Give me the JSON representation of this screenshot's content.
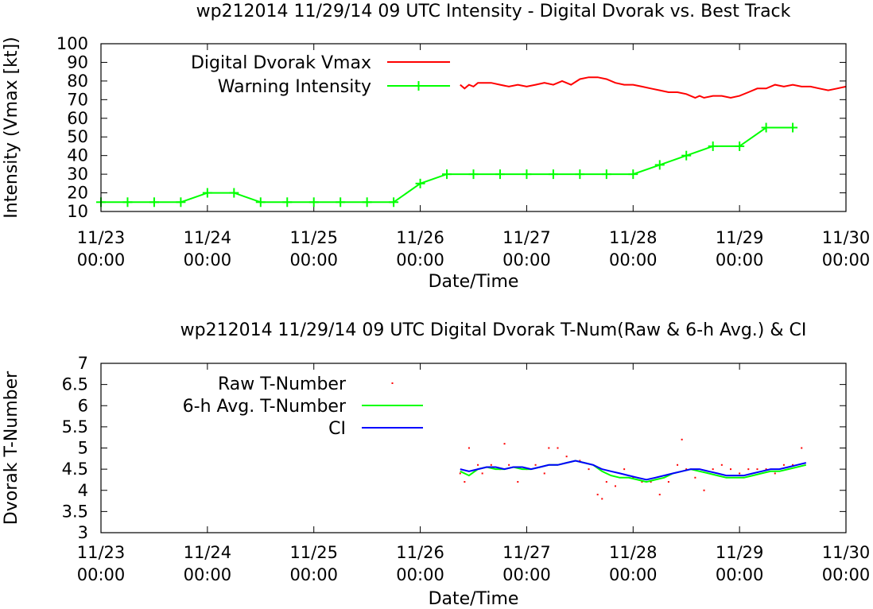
{
  "chart_data": [
    {
      "type": "line",
      "title": "wp212014 11/29/14  09 UTC Intensity - Digital Dvorak vs. Best Track",
      "xlabel": "Date/Time",
      "ylabel": "Intensity (Vmax [kt])",
      "ylim": [
        10,
        100
      ],
      "yticks": [
        10,
        20,
        30,
        40,
        50,
        60,
        70,
        80,
        90,
        100
      ],
      "xlim": [
        "2014-11-23 00:00",
        "2014-11-30 00:00"
      ],
      "xticks": [
        {
          "date": "2014-11-23 00:00",
          "line1": "11/23",
          "line2": "00:00"
        },
        {
          "date": "2014-11-24 00:00",
          "line1": "11/24",
          "line2": "00:00"
        },
        {
          "date": "2014-11-25 00:00",
          "line1": "11/25",
          "line2": "00:00"
        },
        {
          "date": "2014-11-26 00:00",
          "line1": "11/26",
          "line2": "00:00"
        },
        {
          "date": "2014-11-27 00:00",
          "line1": "11/27",
          "line2": "00:00"
        },
        {
          "date": "2014-11-28 00:00",
          "line1": "11/28",
          "line2": "00:00"
        },
        {
          "date": "2014-11-29 00:00",
          "line1": "11/29",
          "line2": "00:00"
        },
        {
          "date": "2014-11-30 00:00",
          "line1": "11/30",
          "line2": "00:00"
        }
      ],
      "legend_placement": "top-left",
      "series": [
        {
          "name": "Digital Dvorak Vmax",
          "color": "#ff0000",
          "style": "line",
          "points": [
            [
              "2014-11-26 09:00",
              78
            ],
            [
              "2014-11-26 10:00",
              76
            ],
            [
              "2014-11-26 11:00",
              78
            ],
            [
              "2014-11-26 12:00",
              77
            ],
            [
              "2014-11-26 13:00",
              79
            ],
            [
              "2014-11-26 14:00",
              79
            ],
            [
              "2014-11-26 16:00",
              79
            ],
            [
              "2014-11-26 18:00",
              78
            ],
            [
              "2014-11-26 20:00",
              77
            ],
            [
              "2014-11-26 22:00",
              78
            ],
            [
              "2014-11-27 00:00",
              77
            ],
            [
              "2014-11-27 02:00",
              78
            ],
            [
              "2014-11-27 04:00",
              79
            ],
            [
              "2014-11-27 06:00",
              78
            ],
            [
              "2014-11-27 08:00",
              80
            ],
            [
              "2014-11-27 10:00",
              78
            ],
            [
              "2014-11-27 12:00",
              81
            ],
            [
              "2014-11-27 14:00",
              82
            ],
            [
              "2014-11-27 16:00",
              82
            ],
            [
              "2014-11-27 18:00",
              81
            ],
            [
              "2014-11-27 20:00",
              79
            ],
            [
              "2014-11-27 22:00",
              78
            ],
            [
              "2014-11-28 00:00",
              78
            ],
            [
              "2014-11-28 02:00",
              77
            ],
            [
              "2014-11-28 04:00",
              76
            ],
            [
              "2014-11-28 06:00",
              75
            ],
            [
              "2014-11-28 08:00",
              74
            ],
            [
              "2014-11-28 10:00",
              74
            ],
            [
              "2014-11-28 12:00",
              73
            ],
            [
              "2014-11-28 14:00",
              71
            ],
            [
              "2014-11-28 15:00",
              72
            ],
            [
              "2014-11-28 16:00",
              71
            ],
            [
              "2014-11-28 18:00",
              72
            ],
            [
              "2014-11-28 20:00",
              72
            ],
            [
              "2014-11-28 22:00",
              71
            ],
            [
              "2014-11-29 00:00",
              72
            ],
            [
              "2014-11-29 02:00",
              74
            ],
            [
              "2014-11-29 04:00",
              76
            ],
            [
              "2014-11-29 06:00",
              76
            ],
            [
              "2014-11-29 08:00",
              78
            ],
            [
              "2014-11-29 10:00",
              77
            ],
            [
              "2014-11-29 12:00",
              78
            ],
            [
              "2014-11-29 14:00",
              77
            ],
            [
              "2014-11-29 16:00",
              77
            ],
            [
              "2014-11-29 18:00",
              76
            ],
            [
              "2014-11-29 20:00",
              75
            ],
            [
              "2014-11-29 22:00",
              76
            ],
            [
              "2014-11-30 00:00",
              77
            ]
          ]
        },
        {
          "name": "Warning Intensity",
          "color": "#00ff00",
          "style": "linespoints",
          "points": [
            [
              "2014-11-23 00:00",
              15
            ],
            [
              "2014-11-23 06:00",
              15
            ],
            [
              "2014-11-23 12:00",
              15
            ],
            [
              "2014-11-23 18:00",
              15
            ],
            [
              "2014-11-24 00:00",
              20
            ],
            [
              "2014-11-24 06:00",
              20
            ],
            [
              "2014-11-24 12:00",
              15
            ],
            [
              "2014-11-24 18:00",
              15
            ],
            [
              "2014-11-25 00:00",
              15
            ],
            [
              "2014-11-25 06:00",
              15
            ],
            [
              "2014-11-25 12:00",
              15
            ],
            [
              "2014-11-25 18:00",
              15
            ],
            [
              "2014-11-26 00:00",
              25
            ],
            [
              "2014-11-26 06:00",
              30
            ],
            [
              "2014-11-26 12:00",
              30
            ],
            [
              "2014-11-26 18:00",
              30
            ],
            [
              "2014-11-27 00:00",
              30
            ],
            [
              "2014-11-27 06:00",
              30
            ],
            [
              "2014-11-27 12:00",
              30
            ],
            [
              "2014-11-27 18:00",
              30
            ],
            [
              "2014-11-28 00:00",
              30
            ],
            [
              "2014-11-28 06:00",
              35
            ],
            [
              "2014-11-28 12:00",
              40
            ],
            [
              "2014-11-28 18:00",
              45
            ],
            [
              "2014-11-29 00:00",
              45
            ],
            [
              "2014-11-29 06:00",
              55
            ],
            [
              "2014-11-29 12:00",
              55
            ]
          ]
        }
      ]
    },
    {
      "type": "line",
      "title": "wp212014 11/29/14  09 UTC Digital Dvorak T-Num(Raw & 6-h Avg.) & CI",
      "xlabel": "Date/Time",
      "ylabel": "Dvorak T-Number",
      "ylim": [
        3,
        7
      ],
      "yticks": [
        3,
        3.5,
        4,
        4.5,
        5,
        5.5,
        6,
        6.5,
        7
      ],
      "ytick_labels": [
        "3",
        "3.5",
        "4",
        "4.5",
        "5",
        "5.5",
        "6",
        "6.5",
        "7"
      ],
      "xlim": [
        "2014-11-23 00:00",
        "2014-11-30 00:00"
      ],
      "xticks": [
        {
          "date": "2014-11-23 00:00",
          "line1": "11/23",
          "line2": "00:00"
        },
        {
          "date": "2014-11-24 00:00",
          "line1": "11/24",
          "line2": "00:00"
        },
        {
          "date": "2014-11-25 00:00",
          "line1": "11/25",
          "line2": "00:00"
        },
        {
          "date": "2014-11-26 00:00",
          "line1": "11/26",
          "line2": "00:00"
        },
        {
          "date": "2014-11-27 00:00",
          "line1": "11/27",
          "line2": "00:00"
        },
        {
          "date": "2014-11-28 00:00",
          "line1": "11/28",
          "line2": "00:00"
        },
        {
          "date": "2014-11-29 00:00",
          "line1": "11/29",
          "line2": "00:00"
        },
        {
          "date": "2014-11-30 00:00",
          "line1": "11/30",
          "line2": "00:00"
        }
      ],
      "legend_placement": "top-left",
      "series": [
        {
          "name": "Raw T-Number",
          "color": "#ff0000",
          "style": "dots",
          "points": [
            [
              "2014-11-26 09:00",
              4.4
            ],
            [
              "2014-11-26 10:00",
              4.2
            ],
            [
              "2014-11-26 11:00",
              5.0
            ],
            [
              "2014-11-26 13:00",
              4.6
            ],
            [
              "2014-11-26 14:00",
              4.4
            ],
            [
              "2014-11-26 16:00",
              4.6
            ],
            [
              "2014-11-26 18:00",
              4.5
            ],
            [
              "2014-11-26 19:00",
              5.1
            ],
            [
              "2014-11-26 20:00",
              4.6
            ],
            [
              "2014-11-26 22:00",
              4.2
            ],
            [
              "2014-11-27 00:00",
              4.5
            ],
            [
              "2014-11-27 02:00",
              4.6
            ],
            [
              "2014-11-27 04:00",
              4.4
            ],
            [
              "2014-11-27 05:00",
              5.0
            ],
            [
              "2014-11-27 07:00",
              5.0
            ],
            [
              "2014-11-27 09:00",
              4.8
            ],
            [
              "2014-11-27 12:00",
              4.7
            ],
            [
              "2014-11-27 14:00",
              4.5
            ],
            [
              "2014-11-27 16:00",
              3.9
            ],
            [
              "2014-11-27 17:00",
              3.8
            ],
            [
              "2014-11-27 18:00",
              4.2
            ],
            [
              "2014-11-27 20:00",
              4.1
            ],
            [
              "2014-11-27 22:00",
              4.5
            ],
            [
              "2014-11-28 00:00",
              4.3
            ],
            [
              "2014-11-28 02:00",
              4.2
            ],
            [
              "2014-11-28 04:00",
              4.2
            ],
            [
              "2014-11-28 06:00",
              3.9
            ],
            [
              "2014-11-28 08:00",
              4.2
            ],
            [
              "2014-11-28 10:00",
              4.6
            ],
            [
              "2014-11-28 11:00",
              5.2
            ],
            [
              "2014-11-28 12:00",
              4.5
            ],
            [
              "2014-11-28 14:00",
              4.3
            ],
            [
              "2014-11-28 16:00",
              4.0
            ],
            [
              "2014-11-28 18:00",
              4.5
            ],
            [
              "2014-11-28 20:00",
              4.6
            ],
            [
              "2014-11-28 22:00",
              4.5
            ],
            [
              "2014-11-29 00:00",
              4.4
            ],
            [
              "2014-11-29 02:00",
              4.5
            ],
            [
              "2014-11-29 04:00",
              4.5
            ],
            [
              "2014-11-29 06:00",
              4.5
            ],
            [
              "2014-11-29 08:00",
              4.4
            ],
            [
              "2014-11-29 10:00",
              4.6
            ],
            [
              "2014-11-29 12:00",
              4.6
            ],
            [
              "2014-11-29 14:00",
              5.0
            ]
          ]
        },
        {
          "name": "6-h Avg. T-Number",
          "color": "#00ff00",
          "style": "line",
          "points": [
            [
              "2014-11-26 09:00",
              4.45
            ],
            [
              "2014-11-26 11:00",
              4.35
            ],
            [
              "2014-11-26 13:00",
              4.5
            ],
            [
              "2014-11-26 15:00",
              4.55
            ],
            [
              "2014-11-26 17:00",
              4.5
            ],
            [
              "2014-11-26 19:00",
              4.5
            ],
            [
              "2014-11-26 21:00",
              4.55
            ],
            [
              "2014-11-26 23:00",
              4.5
            ],
            [
              "2014-11-27 01:00",
              4.5
            ],
            [
              "2014-11-27 03:00",
              4.55
            ],
            [
              "2014-11-27 05:00",
              4.6
            ],
            [
              "2014-11-27 07:00",
              4.6
            ],
            [
              "2014-11-27 09:00",
              4.65
            ],
            [
              "2014-11-27 11:00",
              4.7
            ],
            [
              "2014-11-27 13:00",
              4.65
            ],
            [
              "2014-11-27 15:00",
              4.6
            ],
            [
              "2014-11-27 17:00",
              4.45
            ],
            [
              "2014-11-27 19:00",
              4.35
            ],
            [
              "2014-11-27 21:00",
              4.3
            ],
            [
              "2014-11-27 23:00",
              4.3
            ],
            [
              "2014-11-28 01:00",
              4.25
            ],
            [
              "2014-11-28 03:00",
              4.2
            ],
            [
              "2014-11-28 05:00",
              4.25
            ],
            [
              "2014-11-28 07:00",
              4.3
            ],
            [
              "2014-11-28 09:00",
              4.4
            ],
            [
              "2014-11-28 11:00",
              4.45
            ],
            [
              "2014-11-28 13:00",
              4.5
            ],
            [
              "2014-11-28 15:00",
              4.45
            ],
            [
              "2014-11-28 17:00",
              4.4
            ],
            [
              "2014-11-28 19:00",
              4.35
            ],
            [
              "2014-11-28 21:00",
              4.3
            ],
            [
              "2014-11-28 23:00",
              4.3
            ],
            [
              "2014-11-29 01:00",
              4.3
            ],
            [
              "2014-11-29 03:00",
              4.35
            ],
            [
              "2014-11-29 05:00",
              4.4
            ],
            [
              "2014-11-29 07:00",
              4.45
            ],
            [
              "2014-11-29 09:00",
              4.45
            ],
            [
              "2014-11-29 11:00",
              4.5
            ],
            [
              "2014-11-29 13:00",
              4.55
            ],
            [
              "2014-11-29 15:00",
              4.6
            ]
          ]
        },
        {
          "name": "CI",
          "color": "#0000ff",
          "style": "line",
          "points": [
            [
              "2014-11-26 09:00",
              4.5
            ],
            [
              "2014-11-26 11:00",
              4.45
            ],
            [
              "2014-11-26 13:00",
              4.5
            ],
            [
              "2014-11-26 15:00",
              4.55
            ],
            [
              "2014-11-26 17:00",
              4.55
            ],
            [
              "2014-11-26 19:00",
              4.5
            ],
            [
              "2014-11-26 21:00",
              4.55
            ],
            [
              "2014-11-26 23:00",
              4.55
            ],
            [
              "2014-11-27 01:00",
              4.5
            ],
            [
              "2014-11-27 03:00",
              4.55
            ],
            [
              "2014-11-27 05:00",
              4.6
            ],
            [
              "2014-11-27 07:00",
              4.6
            ],
            [
              "2014-11-27 09:00",
              4.65
            ],
            [
              "2014-11-27 11:00",
              4.7
            ],
            [
              "2014-11-27 13:00",
              4.65
            ],
            [
              "2014-11-27 15:00",
              4.6
            ],
            [
              "2014-11-27 17:00",
              4.5
            ],
            [
              "2014-11-27 19:00",
              4.45
            ],
            [
              "2014-11-27 21:00",
              4.4
            ],
            [
              "2014-11-27 23:00",
              4.35
            ],
            [
              "2014-11-28 01:00",
              4.3
            ],
            [
              "2014-11-28 03:00",
              4.25
            ],
            [
              "2014-11-28 05:00",
              4.3
            ],
            [
              "2014-11-28 07:00",
              4.35
            ],
            [
              "2014-11-28 09:00",
              4.4
            ],
            [
              "2014-11-28 11:00",
              4.45
            ],
            [
              "2014-11-28 13:00",
              4.5
            ],
            [
              "2014-11-28 15:00",
              4.5
            ],
            [
              "2014-11-28 17:00",
              4.45
            ],
            [
              "2014-11-28 19:00",
              4.4
            ],
            [
              "2014-11-28 21:00",
              4.35
            ],
            [
              "2014-11-28 23:00",
              4.35
            ],
            [
              "2014-11-29 01:00",
              4.35
            ],
            [
              "2014-11-29 03:00",
              4.4
            ],
            [
              "2014-11-29 05:00",
              4.45
            ],
            [
              "2014-11-29 07:00",
              4.5
            ],
            [
              "2014-11-29 09:00",
              4.5
            ],
            [
              "2014-11-29 11:00",
              4.55
            ],
            [
              "2014-11-29 13:00",
              4.6
            ],
            [
              "2014-11-29 15:00",
              4.65
            ]
          ]
        }
      ]
    }
  ]
}
